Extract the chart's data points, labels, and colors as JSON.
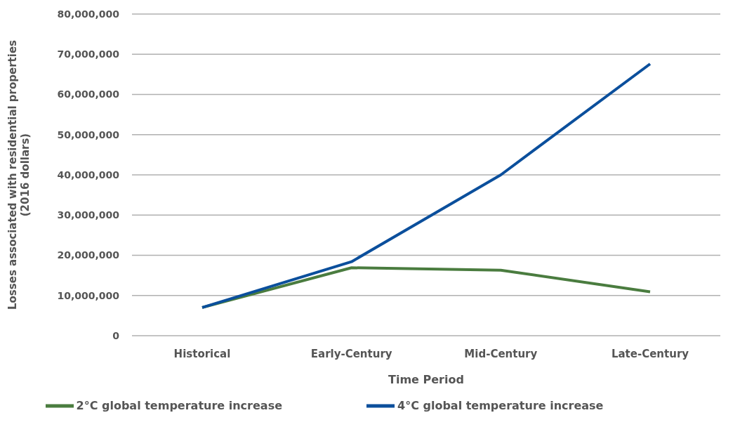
{
  "chart_data": {
    "type": "line",
    "xlabel": "Time Period",
    "ylabel": "Losses associated with  residential properties\n(2016 dollars)",
    "categories": [
      "Historical",
      "Early-Century",
      "Mid-Century",
      "Late-Century"
    ],
    "series": [
      {
        "name": "2°C global temperature increase",
        "color": "#4a7c3f",
        "values": [
          7000000,
          16900000,
          16300000,
          10900000
        ]
      },
      {
        "name": "4°C global temperature increase",
        "color": "#0b4f9c",
        "values": [
          7000000,
          18400000,
          40000000,
          67600000
        ]
      }
    ],
    "ylim": [
      0,
      80000000
    ],
    "yticks": [
      0,
      {
        "value": 10000000,
        "label": "10,000,000"
      },
      {
        "value": 20000000,
        "label": "20,000,000"
      },
      {
        "value": 30000000,
        "label": "30,000,000"
      },
      {
        "value": 40000000,
        "label": "40,000,000"
      },
      {
        "value": 50000000,
        "label": "50,000,000"
      },
      {
        "value": 60000000,
        "label": "60,000,000"
      },
      {
        "value": 70000000,
        "label": "70,000,000"
      },
      {
        "value": 80000000,
        "label": "80,000,000"
      }
    ],
    "grid": "y",
    "legend": "bottom",
    "marker": "none",
    "line_style": "solid"
  }
}
